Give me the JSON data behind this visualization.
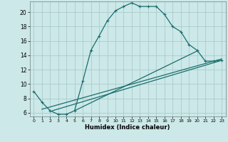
{
  "bg_color": "#cce8e8",
  "grid_color": "#aacccc",
  "line_color": "#1a6e6e",
  "marker": "+",
  "xlabel": "Humidex (Indice chaleur)",
  "xlim": [
    -0.5,
    23.5
  ],
  "ylim": [
    5.5,
    21.5
  ],
  "yticks": [
    6,
    8,
    10,
    12,
    14,
    16,
    18,
    20
  ],
  "xticks": [
    0,
    1,
    2,
    3,
    4,
    5,
    6,
    7,
    8,
    9,
    10,
    11,
    12,
    13,
    14,
    15,
    16,
    17,
    18,
    19,
    20,
    21,
    22,
    23
  ],
  "curve1_x": [
    0,
    1,
    2,
    3,
    4,
    5,
    6,
    7,
    8,
    9,
    10,
    11,
    12,
    13,
    14,
    15,
    16,
    17,
    18,
    19,
    20,
    21,
    22,
    23
  ],
  "curve1_y": [
    9.0,
    7.5,
    6.3,
    5.8,
    5.8,
    6.3,
    10.4,
    14.7,
    16.7,
    18.8,
    20.2,
    20.8,
    21.3,
    20.8,
    20.8,
    20.8,
    19.7,
    18.0,
    17.3,
    15.5,
    14.7,
    13.2,
    13.2,
    13.3
  ],
  "line1_x": [
    1,
    23
  ],
  "line1_y": [
    6.5,
    13.5
  ],
  "line2_x": [
    2,
    23
  ],
  "line2_y": [
    6.2,
    13.3
  ],
  "line3_x": [
    5,
    20
  ],
  "line3_y": [
    6.3,
    14.6
  ]
}
